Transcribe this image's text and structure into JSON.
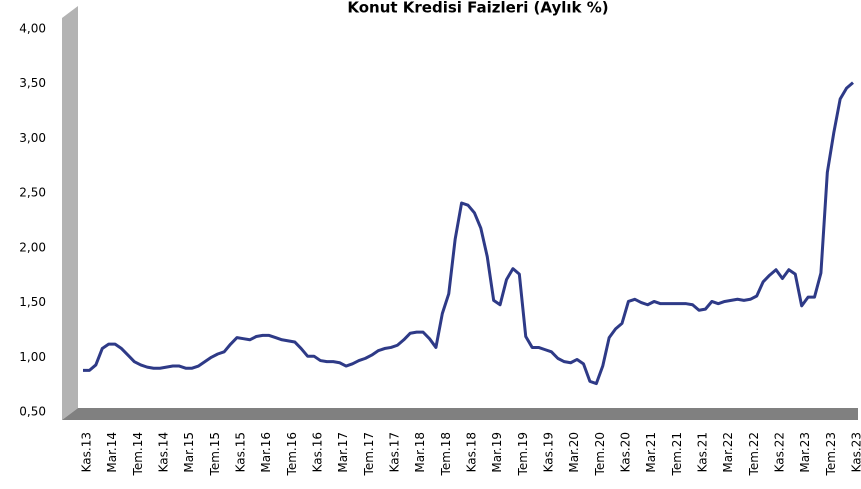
{
  "chart_data": {
    "type": "line",
    "title": "Konut Kredisi Faizleri (Aylık %)",
    "categories": [
      "Kas.13",
      null,
      null,
      null,
      "Mar.14",
      null,
      null,
      null,
      "Tem.14",
      null,
      null,
      null,
      "Kas.14",
      null,
      null,
      null,
      "Mar.15",
      null,
      null,
      null,
      "Tem.15",
      null,
      null,
      null,
      "Kas.15",
      null,
      null,
      null,
      "Mar.16",
      null,
      null,
      null,
      "Tem.16",
      null,
      null,
      null,
      "Kas.16",
      null,
      null,
      null,
      "Mar.17",
      null,
      null,
      null,
      "Tem.17",
      null,
      null,
      null,
      "Kas.17",
      null,
      null,
      null,
      "Mar.18",
      null,
      null,
      null,
      "Tem.18",
      null,
      null,
      null,
      "Kas.18",
      null,
      null,
      null,
      "Mar.19",
      null,
      null,
      null,
      "Tem.19",
      null,
      null,
      null,
      "Kas.19",
      null,
      null,
      null,
      "Mar.20",
      null,
      null,
      null,
      "Tem.20",
      null,
      null,
      null,
      "Kas.20",
      null,
      null,
      null,
      "Mar.21",
      null,
      null,
      null,
      "Tem.21",
      null,
      null,
      null,
      "Kas.21",
      null,
      null,
      null,
      "Mar.22",
      null,
      null,
      null,
      "Tem.22",
      null,
      null,
      null,
      "Kas.22",
      null,
      null,
      null,
      "Mar.23",
      null,
      null,
      null,
      "Tem.23",
      null,
      null,
      null,
      "Kas.23"
    ],
    "series": [
      {
        "name": null,
        "color": "#2e3a87",
        "values": [
          0.88,
          0.88,
          0.93,
          1.08,
          1.12,
          1.12,
          1.08,
          1.02,
          0.96,
          0.93,
          0.91,
          0.9,
          0.9,
          0.91,
          0.92,
          0.92,
          0.9,
          0.9,
          0.92,
          0.96,
          1.0,
          1.03,
          1.05,
          1.12,
          1.18,
          1.17,
          1.16,
          1.19,
          1.2,
          1.2,
          1.18,
          1.16,
          1.15,
          1.14,
          1.08,
          1.01,
          1.01,
          0.97,
          0.96,
          0.96,
          0.95,
          0.92,
          0.94,
          0.97,
          0.99,
          1.02,
          1.06,
          1.08,
          1.09,
          1.11,
          1.16,
          1.22,
          1.23,
          1.23,
          1.17,
          1.09,
          1.4,
          1.58,
          2.08,
          2.41,
          2.39,
          2.32,
          2.18,
          1.92,
          1.52,
          1.48,
          1.71,
          1.81,
          1.76,
          1.19,
          1.09,
          1.09,
          1.07,
          1.05,
          0.99,
          0.96,
          0.95,
          0.98,
          0.94,
          0.78,
          0.76,
          0.92,
          1.18,
          1.26,
          1.31,
          1.51,
          1.53,
          1.5,
          1.48,
          1.51,
          1.49,
          1.49,
          1.49,
          1.49,
          1.49,
          1.48,
          1.43,
          1.44,
          1.51,
          1.49,
          1.51,
          1.52,
          1.53,
          1.52,
          1.53,
          1.56,
          1.69,
          1.75,
          1.8,
          1.72,
          1.8,
          1.76,
          1.47,
          1.55,
          1.55,
          1.77,
          2.69,
          3.05,
          3.36,
          3.46,
          3.51
        ]
      }
    ],
    "ylim": [
      0.5,
      4.0
    ],
    "yticks": [
      {
        "value": 0.5,
        "label": "0,50"
      },
      {
        "value": 1,
        "label": "1,00"
      },
      {
        "value": 1.5,
        "label": "1,50"
      },
      {
        "value": 2,
        "label": "2,00"
      },
      {
        "value": 2.5,
        "label": "2,50"
      },
      {
        "value": 3,
        "label": "3,00"
      },
      {
        "value": 3.5,
        "label": "3,50"
      },
      {
        "value": 4,
        "label": "4,00"
      }
    ],
    "grid": false
  }
}
